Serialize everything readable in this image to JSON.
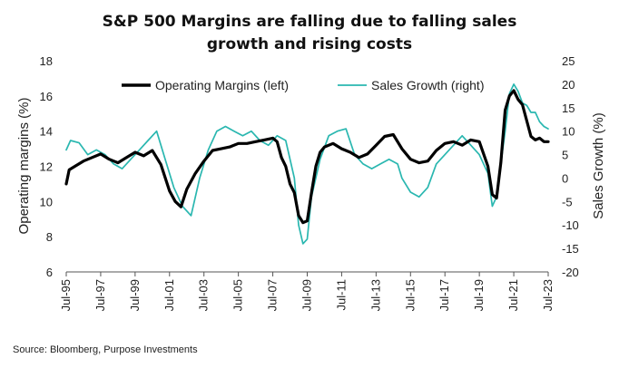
{
  "chart_data": {
    "type": "line",
    "title_line1": "S&P 500 Margins are falling due to falling sales",
    "title_line2": "growth and rising costs",
    "ylabel_left": "Operating margins (%)",
    "ylabel_right": "Sales Growth (%)",
    "source": "Source: Bloomberg, Purpose Investments",
    "ylim_left": [
      6,
      18
    ],
    "ylim_right": [
      -20,
      25
    ],
    "yticks_left": [
      "6",
      "8",
      "10",
      "12",
      "14",
      "16",
      "18"
    ],
    "yticks_right": [
      "-20",
      "-15",
      "-10",
      "-5",
      "0",
      "5",
      "10",
      "15",
      "20",
      "25"
    ],
    "xlim": [
      "1995-07",
      "2023-07"
    ],
    "xticks": [
      "Jul-95",
      "Jul-97",
      "Jul-99",
      "Jul-01",
      "Jul-03",
      "Jul-05",
      "Jul-07",
      "Jul-09",
      "Jul-11",
      "Jul-13",
      "Jul-15",
      "Jul-17",
      "Jul-19",
      "Jul-21",
      "Jul-23"
    ],
    "legend_position": "top-right",
    "grid": false,
    "series": [
      {
        "name": "Operating Margins (left)",
        "axis": "left",
        "color": "#000000",
        "x": [
          "1995-07",
          "1995-09",
          "1996-01",
          "1996-07",
          "1997-01",
          "1997-07",
          "1998-01",
          "1998-07",
          "1999-01",
          "1999-07",
          "2000-01",
          "2000-07",
          "2001-01",
          "2001-07",
          "2001-11",
          "2002-03",
          "2002-07",
          "2003-01",
          "2003-07",
          "2004-01",
          "2004-07",
          "2005-01",
          "2005-07",
          "2006-01",
          "2006-07",
          "2007-01",
          "2007-07",
          "2007-10",
          "2008-01",
          "2008-04",
          "2008-07",
          "2008-10",
          "2009-01",
          "2009-04",
          "2009-07",
          "2009-10",
          "2010-01",
          "2010-04",
          "2010-07",
          "2011-01",
          "2011-07",
          "2012-01",
          "2012-07",
          "2013-01",
          "2013-07",
          "2014-01",
          "2014-07",
          "2015-01",
          "2015-07",
          "2016-01",
          "2016-07",
          "2017-01",
          "2017-07",
          "2018-01",
          "2018-07",
          "2019-01",
          "2019-07",
          "2020-01",
          "2020-04",
          "2020-07",
          "2020-10",
          "2021-01",
          "2021-04",
          "2021-07",
          "2021-10",
          "2022-01",
          "2022-04",
          "2022-07",
          "2022-10",
          "2023-01",
          "2023-04",
          "2023-07"
        ],
        "y": [
          11.0,
          11.8,
          12.0,
          12.3,
          12.5,
          12.7,
          12.4,
          12.2,
          12.5,
          12.8,
          12.6,
          12.9,
          12.1,
          10.6,
          10.0,
          9.7,
          10.7,
          11.6,
          12.3,
          12.9,
          13.0,
          13.1,
          13.3,
          13.3,
          13.4,
          13.5,
          13.6,
          13.4,
          12.5,
          12.0,
          11.0,
          10.5,
          9.2,
          8.8,
          8.9,
          10.5,
          12.0,
          12.8,
          13.1,
          13.3,
          13.0,
          12.8,
          12.5,
          12.7,
          13.2,
          13.7,
          13.8,
          13.0,
          12.4,
          12.2,
          12.3,
          12.9,
          13.3,
          13.4,
          13.2,
          13.5,
          13.4,
          12.0,
          10.4,
          10.2,
          12.2,
          15.2,
          16.0,
          16.3,
          15.8,
          15.5,
          14.6,
          13.7,
          13.5,
          13.6,
          13.4,
          13.4
        ]
      },
      {
        "name": "Sales Growth (right)",
        "axis": "right",
        "color": "#2ab7b0",
        "x": [
          "1995-07",
          "1995-10",
          "1996-04",
          "1996-10",
          "1997-04",
          "1997-10",
          "1998-04",
          "1998-10",
          "1999-04",
          "1999-10",
          "2000-04",
          "2000-10",
          "2001-04",
          "2001-10",
          "2002-04",
          "2002-10",
          "2003-04",
          "2003-10",
          "2004-04",
          "2004-10",
          "2005-04",
          "2005-10",
          "2006-04",
          "2006-10",
          "2007-04",
          "2007-10",
          "2008-04",
          "2008-10",
          "2009-01",
          "2009-04",
          "2009-07",
          "2009-10",
          "2010-04",
          "2010-10",
          "2011-04",
          "2011-10",
          "2012-04",
          "2012-10",
          "2013-04",
          "2013-10",
          "2014-04",
          "2014-10",
          "2015-01",
          "2015-07",
          "2016-01",
          "2016-07",
          "2017-01",
          "2017-07",
          "2018-01",
          "2018-07",
          "2019-01",
          "2019-07",
          "2020-01",
          "2020-04",
          "2020-07",
          "2020-10",
          "2021-01",
          "2021-04",
          "2021-07",
          "2021-10",
          "2022-01",
          "2022-04",
          "2022-07",
          "2022-10",
          "2023-01",
          "2023-04",
          "2023-07"
        ],
        "y": [
          6.0,
          8.0,
          7.5,
          5.0,
          6.0,
          5.0,
          3.0,
          2.0,
          4.0,
          6.0,
          8.0,
          10.0,
          4.0,
          -2.0,
          -6.0,
          -8.0,
          0.0,
          6.0,
          10.0,
          11.0,
          10.0,
          9.0,
          10.0,
          8.0,
          7.0,
          9.0,
          8.0,
          0.0,
          -10.0,
          -14.0,
          -13.0,
          -4.0,
          4.0,
          9.0,
          10.0,
          10.5,
          5.0,
          3.0,
          2.0,
          3.0,
          4.0,
          3.0,
          0.0,
          -3.0,
          -4.0,
          -2.0,
          3.0,
          5.0,
          7.0,
          9.0,
          7.0,
          5.0,
          1.0,
          -6.0,
          -4.0,
          3.0,
          10.0,
          18.0,
          20.0,
          18.5,
          16.0,
          15.5,
          14.0,
          14.0,
          12.0,
          11.0,
          10.5
        ]
      }
    ]
  }
}
